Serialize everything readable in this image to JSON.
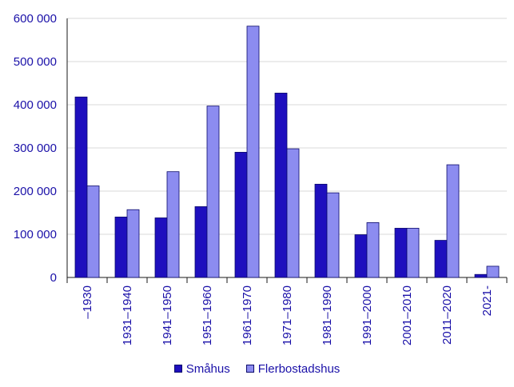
{
  "chart_data": {
    "type": "bar",
    "categories": [
      "–1930",
      "1931–1940",
      "1941–1950",
      "1951–1960",
      "1961–1970",
      "1971–1980",
      "1981–1990",
      "1991–2000",
      "2001–2010",
      "2011–2020",
      "2021-"
    ],
    "series": [
      {
        "name": "Småhus",
        "color": "#1e0fbe",
        "values": [
          418000,
          140000,
          138000,
          164000,
          290000,
          427000,
          216000,
          99000,
          114000,
          86000,
          7000
        ]
      },
      {
        "name": "Flerbostadshus",
        "color": "#8c8cf0",
        "values": [
          212000,
          157000,
          245000,
          397000,
          582000,
          298000,
          196000,
          127000,
          114000,
          261000,
          26000
        ]
      }
    ],
    "yticks": [
      "0",
      "100 000",
      "200 000",
      "300 000",
      "400 000",
      "500 000",
      "600 000"
    ],
    "ylim": [
      0,
      600000
    ],
    "grid": true,
    "legend_position": "bottom",
    "text_color": "#1a10a8"
  }
}
